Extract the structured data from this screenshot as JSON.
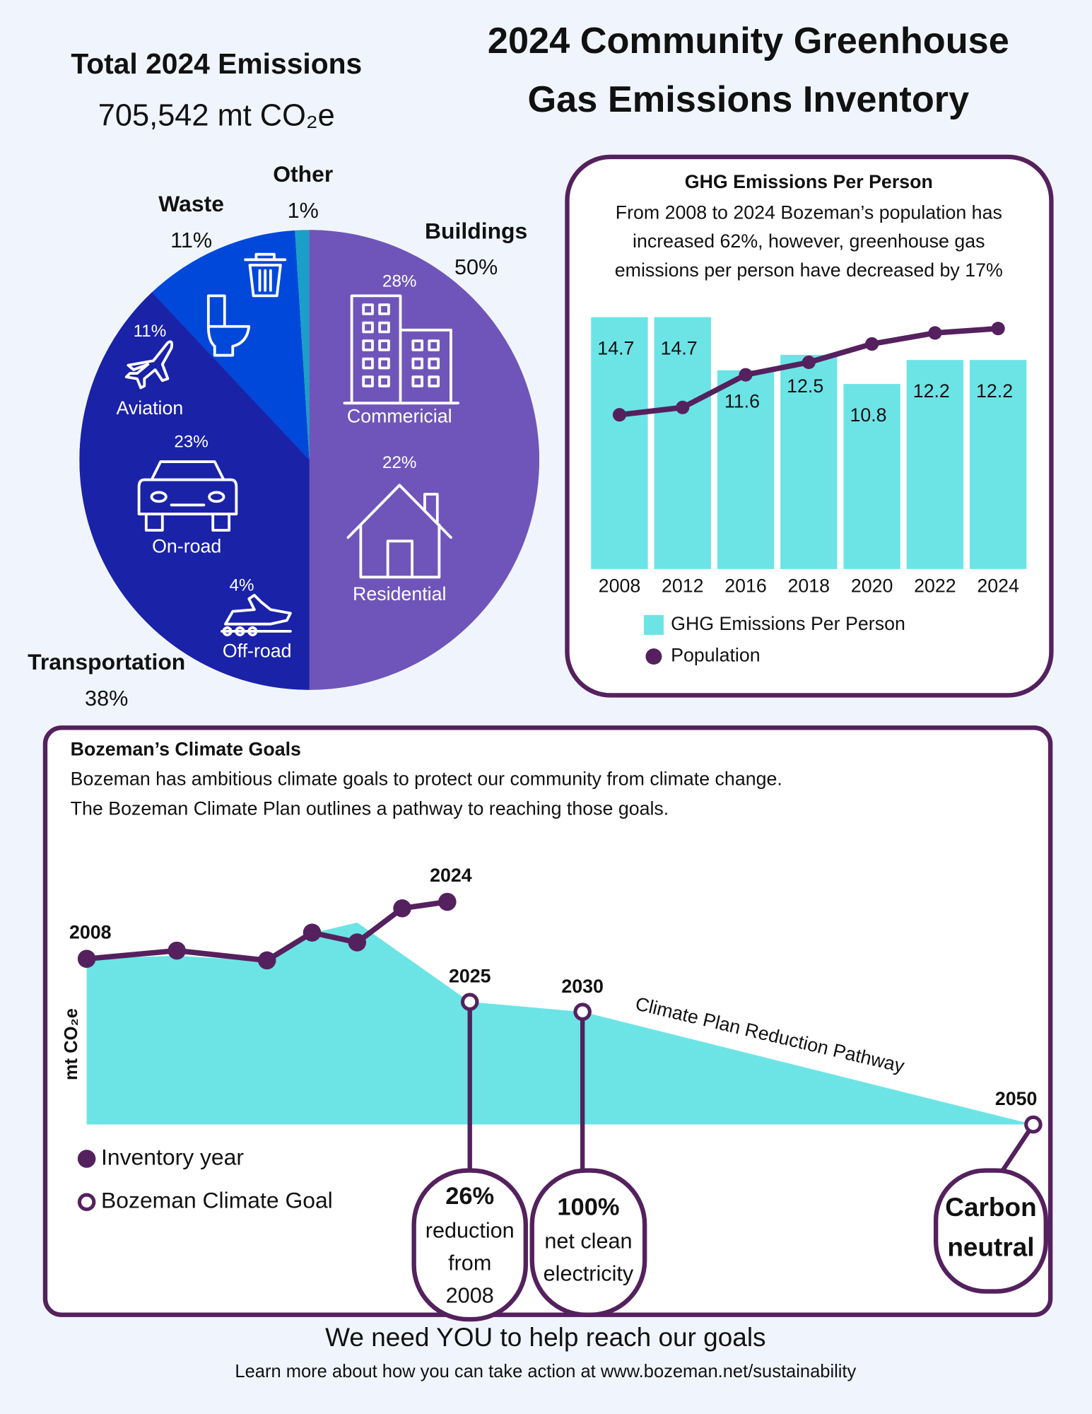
{
  "header": {
    "title_lines": [
      "2024 Community Greenhouse",
      "Gas Emissions Inventory"
    ]
  },
  "total": {
    "title": "Total 2024 Emissions",
    "value": "705,542 mt CO₂e"
  },
  "chart_data": [
    {
      "type": "pie",
      "categories": [
        "Buildings",
        "Transportation",
        "Waste",
        "Other"
      ],
      "values": [
        50,
        38,
        11,
        1
      ],
      "value_labels": [
        "50%",
        "38%",
        "11%",
        "1%"
      ],
      "colors": [
        "#6f55b9",
        "#1a22a8",
        "#0048d9",
        "#1a9fc8"
      ],
      "breakdown": {
        "categories": [
          "Commericial",
          "Residential",
          "Off-road",
          "On-road",
          "Aviation"
        ],
        "values": [
          28,
          22,
          4,
          23,
          11
        ],
        "value_labels": [
          "28%",
          "22%",
          "4%",
          "23%",
          "11%"
        ],
        "colors": [
          "#6f55b9",
          "#6f55b9",
          "#1a22a8",
          "#1a22a8",
          "#1a22a8"
        ]
      }
    },
    {
      "type": "bar",
      "title": "GHG Emissions Per Person",
      "subtitle_lines": [
        "From 2008 to 2024 Bozeman’s population has",
        "increased 62%, however, greenhouse gas",
        "emissions per person have decreased by 17%"
      ],
      "categories": [
        "2008",
        "2012",
        "2016",
        "2018",
        "2020",
        "2022",
        "2024"
      ],
      "ylim": [
        0,
        15
      ],
      "y2lim": [
        -4000,
        66000
      ],
      "series": [
        {
          "name": "GHG Emissions Per Person",
          "type": "bar",
          "color": "#6ce4e6",
          "values": [
            14.7,
            14.7,
            11.6,
            12.5,
            10.8,
            12.2,
            12.2
          ]
        },
        {
          "name": "Population",
          "type": "line",
          "axis": "y2",
          "color": "#54215e",
          "values": [
            38000,
            40000,
            48900,
            52300,
            57300,
            60300,
            61500
          ]
        }
      ]
    },
    {
      "type": "line",
      "y_label": "mt CO₂e",
      "xlim": [
        2008,
        2050
      ],
      "ylim": [
        0,
        820000
      ],
      "series": [
        {
          "name": "Climate Plan Reduction Pathway",
          "type": "area",
          "color": "#6ce4e6",
          "x": [
            2008,
            2012,
            2016,
            2018,
            2020,
            2025,
            2030,
            2050
          ],
          "values": [
            525000,
            535000,
            517000,
            606000,
            640000,
            388500,
            357000,
            0
          ]
        },
        {
          "name": "Inventory year",
          "type": "line",
          "color": "#54215e",
          "x": [
            2008,
            2012,
            2016,
            2018,
            2020,
            2022,
            2024
          ],
          "values": [
            525000,
            551000,
            520000,
            608000,
            577000,
            685000,
            705542
          ]
        },
        {
          "name": "Bozeman Climate Goal",
          "type": "scatter",
          "color": "#54215e",
          "x": [
            2025,
            2030,
            2050
          ],
          "values": [
            388500,
            357000,
            0
          ]
        }
      ]
    }
  ],
  "goals": {
    "title": "Bozeman’s Climate Goals",
    "text_lines": [
      "Bozeman has ambitious climate goals to protect our community from climate change.",
      "The Bozeman Climate Plan outlines a pathway to reaching those goals."
    ],
    "callouts": [
      {
        "lines": [
          "26%",
          "reduction",
          "from",
          "2008"
        ]
      },
      {
        "lines": [
          "100%",
          "net clean",
          "electricity"
        ]
      },
      {
        "lines": [
          "Carbon",
          "neutral"
        ]
      }
    ]
  },
  "footer": {
    "headline": "We need YOU to help reach our goals",
    "note": "Learn more about how you can take action at www.bozeman.net/sustainability"
  }
}
